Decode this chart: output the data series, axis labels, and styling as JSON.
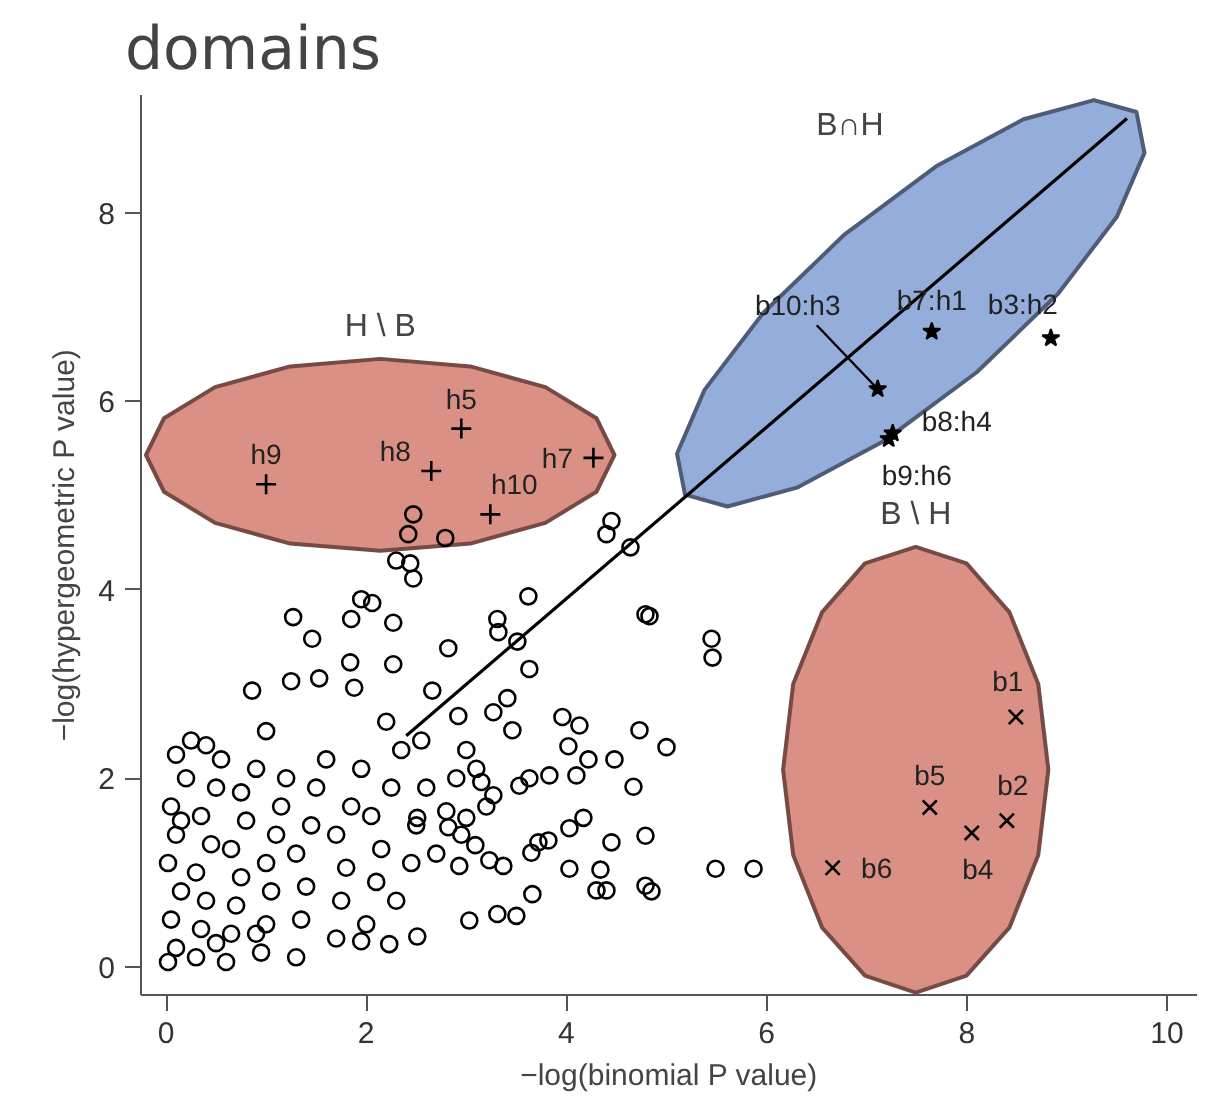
{
  "chart_data": {
    "type": "scatter",
    "title": "domains",
    "xlabel": "−log(binomial P value)",
    "ylabel": "−log(hypergeometric P value)",
    "xlim": [
      -0.25,
      10.3
    ],
    "ylim": [
      -0.3,
      9.25
    ],
    "xticks": [
      0,
      2,
      4,
      6,
      8,
      10
    ],
    "yticks": [
      0,
      2,
      4,
      6,
      8
    ],
    "series": [
      {
        "type": "area",
        "color": "#d98a7f",
        "x": [
          4.48,
          4.3,
          3.79,
          3.04,
          2.14,
          1.24,
          0.49,
          -0.02,
          -0.2,
          -0.02,
          0.49,
          1.24,
          2.14,
          3.04,
          3.79,
          4.3
        ],
        "values": [
          5.43,
          5.82,
          6.15,
          6.37,
          6.45,
          6.37,
          6.15,
          5.82,
          5.43,
          5.04,
          4.71,
          4.49,
          4.415,
          4.49,
          4.71,
          5.04
        ]
      },
      {
        "type": "area",
        "color": "#8fa9d8",
        "x": [
          9.695,
          9.271,
          8.568,
          7.694,
          6.781,
          5.968,
          5.38,
          5.105,
          5.185,
          5.609,
          6.312,
          7.186,
          8.099,
          8.912,
          9.5,
          9.775
        ],
        "values": [
          9.07,
          9.196,
          8.993,
          8.493,
          7.772,
          6.939,
          6.121,
          5.444,
          5.01,
          4.884,
          5.087,
          5.587,
          6.308,
          7.141,
          7.959,
          8.636
        ]
      },
      {
        "type": "area",
        "color": "#d98a7f",
        "x": [
          8.815,
          8.714,
          8.427,
          7.997,
          7.49,
          6.983,
          6.553,
          6.266,
          6.165,
          6.266,
          6.553,
          6.983,
          7.49,
          7.997,
          8.427,
          8.714
        ],
        "values": [
          2.09,
          3.0,
          3.76,
          4.28,
          4.455,
          4.28,
          3.76,
          3.0,
          2.09,
          1.185,
          0.418,
          -0.095,
          -0.275,
          -0.095,
          0.418,
          1.185
        ]
      },
      {
        "marker": "circle",
        "color": "#000000",
        "x": [
          0.02,
          0.1,
          0.05,
          0.15,
          0.02,
          0.1,
          0.05,
          0.2,
          0.1,
          0.3,
          0.35,
          0.4,
          0.3,
          0.45,
          0.35,
          0.5,
          0.55,
          0.6,
          0.65,
          0.7,
          0.75,
          0.65,
          0.8,
          0.75,
          0.9,
          0.95,
          1.0,
          1.05,
          1.0,
          1.1,
          1.15,
          1.2,
          1.3,
          1.35,
          1.4,
          1.3,
          1.45,
          1.5,
          1.6,
          1.7,
          1.75,
          1.8,
          1.7,
          1.85,
          1.95,
          2.0,
          2.1,
          2.15,
          2.05,
          2.25,
          2.35,
          2.3,
          2.45,
          2.5,
          2.6,
          2.7,
          2.8,
          2.9,
          3.0,
          0.25,
          0.4,
          1.0,
          0.15,
          0.5,
          2.2,
          2.55,
          3.1,
          2.95,
          3.2,
          0.9,
          3.62,
          4.83,
          5.45,
          5.46,
          1.27,
          1.95,
          2.06,
          2.27,
          1.85,
          1.46,
          2.82,
          3.31,
          3.32,
          3.51,
          3.63,
          0.86,
          1.25,
          1.53,
          1.84,
          1.88,
          2.27,
          2.66,
          2.92,
          3.27,
          3.41,
          3.46,
          3.96,
          4.13,
          4.73,
          5.0,
          4.48,
          4.67,
          4.02,
          4.22,
          3.83,
          4.1,
          3.63,
          3.53,
          3.27,
          3.15,
          4.17,
          4.03,
          4.79,
          4.45,
          3.72,
          3.82,
          3.65,
          4.03,
          4.34,
          5.49,
          5.87,
          4.79,
          4.85,
          4.3,
          4.4,
          3.66,
          3.31,
          3.03,
          3.5,
          2.51,
          1.95,
          2.23,
          3.09,
          3.23,
          3.37,
          2.82,
          2.93,
          3.0,
          2.51,
          2.47,
          2.42,
          2.79,
          2.3,
          2.44,
          2.47,
          4.45,
          4.64,
          4.4,
          4.79
        ],
        "values": [
          0.05,
          0.2,
          0.5,
          0.8,
          1.1,
          1.4,
          1.7,
          2.0,
          2.25,
          0.1,
          0.4,
          0.7,
          1.0,
          1.3,
          1.6,
          1.9,
          2.2,
          0.05,
          0.35,
          0.65,
          0.95,
          1.25,
          1.55,
          1.85,
          2.1,
          0.15,
          0.45,
          0.8,
          1.1,
          1.4,
          1.7,
          2.0,
          0.1,
          0.5,
          0.85,
          1.2,
          1.5,
          1.9,
          2.2,
          0.3,
          0.7,
          1.05,
          1.4,
          1.7,
          2.1,
          0.45,
          0.9,
          1.25,
          1.6,
          1.9,
          2.3,
          0.7,
          1.1,
          1.5,
          1.9,
          1.2,
          1.65,
          2.0,
          2.3,
          2.4,
          2.35,
          2.5,
          1.55,
          0.25,
          2.6,
          2.4,
          2.1,
          1.4,
          1.7,
          0.35,
          3.93,
          3.72,
          3.48,
          3.28,
          3.71,
          3.9,
          3.86,
          3.65,
          3.69,
          3.48,
          3.38,
          3.69,
          3.55,
          3.45,
          3.16,
          2.93,
          3.03,
          3.06,
          3.23,
          2.96,
          3.21,
          2.93,
          2.66,
          2.7,
          2.85,
          2.51,
          2.65,
          2.56,
          2.51,
          2.33,
          2.2,
          1.91,
          2.34,
          2.2,
          2.03,
          2.03,
          2.0,
          1.92,
          1.82,
          1.96,
          1.58,
          1.47,
          1.39,
          1.32,
          1.32,
          1.34,
          1.21,
          1.04,
          1.03,
          1.04,
          1.04,
          0.86,
          0.8,
          0.81,
          0.81,
          0.77,
          0.56,
          0.49,
          0.54,
          0.32,
          0.27,
          0.24,
          1.29,
          1.13,
          1.07,
          1.48,
          1.07,
          1.58,
          1.58,
          4.8,
          4.59,
          4.55,
          4.31,
          4.28,
          4.12,
          4.73,
          4.45,
          4.59,
          3.74
        ]
      },
      {
        "marker": "cross",
        "color": "#000000",
        "x": [
          1.0,
          2.65,
          2.95,
          3.24,
          4.27
        ],
        "values": [
          5.12,
          5.26,
          5.71,
          4.8,
          5.4
        ]
      },
      {
        "marker": "star",
        "color": "#000000",
        "x": [
          7.65,
          8.84,
          7.11,
          7.26,
          7.22
        ],
        "values": [
          6.74,
          6.67,
          6.13,
          5.66,
          5.6
        ]
      },
      {
        "marker": "x",
        "color": "#000000",
        "x": [
          8.49,
          7.63,
          8.4,
          8.05,
          6.66
        ],
        "values": [
          2.65,
          1.69,
          1.55,
          1.42,
          1.05
        ]
      },
      {
        "type": "line",
        "color": "#000000",
        "x": [
          2.4,
          9.6
        ],
        "values": [
          2.45,
          9.0
        ]
      }
    ],
    "annotations": [
      "H \\ B",
      "B∩H",
      "B \\ H",
      {
        "text": "h9",
        "x": 1.0,
        "y": 5.12
      },
      {
        "text": "h8",
        "x": 2.65,
        "y": 5.26
      },
      {
        "text": "h5",
        "x": 2.95,
        "y": 5.71
      },
      {
        "text": "h10",
        "x": 3.24,
        "y": 4.8
      },
      {
        "text": "h7",
        "x": 4.27,
        "y": 5.4
      },
      {
        "text": "b10:h3",
        "x": 7.11,
        "y": 6.13
      },
      {
        "text": "b7:h1",
        "x": 7.65,
        "y": 6.74
      },
      {
        "text": "b3:h2",
        "x": 8.84,
        "y": 6.67
      },
      {
        "text": "b8:h4",
        "x": 7.26,
        "y": 5.66
      },
      {
        "text": "b9:h6",
        "x": 7.22,
        "y": 5.6
      },
      {
        "text": "b1",
        "x": 8.49,
        "y": 2.65
      },
      {
        "text": "b5",
        "x": 7.63,
        "y": 1.69
      },
      {
        "text": "b2",
        "x": 8.4,
        "y": 1.55
      },
      {
        "text": "b4",
        "x": 8.05,
        "y": 1.42
      },
      {
        "text": "b6",
        "x": 6.66,
        "y": 1.05
      }
    ]
  }
}
